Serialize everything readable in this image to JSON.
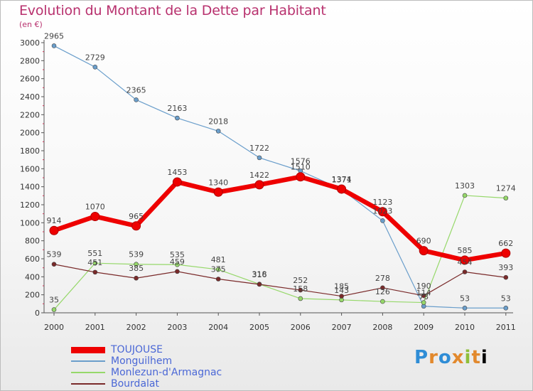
{
  "title": "Evolution du Montant de la Dette par Habitant",
  "unit_label": "(en €)",
  "logo_text": "Proxiti",
  "colors": {
    "title": "#b8316e",
    "axis": "#555555",
    "tick_text": "#333333",
    "value_text": "#444444"
  },
  "chart_data": {
    "type": "line",
    "title": "Evolution du Montant de la Dette par Habitant",
    "ylabel": "(en €)",
    "xlabel": "",
    "x": [
      "2000",
      "2001",
      "2002",
      "2003",
      "2004",
      "2005",
      "2006",
      "2007",
      "2008",
      "2009",
      "2010",
      "2011"
    ],
    "ylim": [
      0,
      3000
    ],
    "yticks": [
      0,
      200,
      400,
      600,
      800,
      1000,
      1200,
      1400,
      1600,
      1800,
      2000,
      2200,
      2400,
      2600,
      2800,
      3000
    ],
    "grid": false,
    "legend_position": "bottom-left",
    "series": [
      {
        "name": "TOUJOUSE",
        "color": "#ee0000",
        "width": 6.5,
        "values": [
          914,
          1070,
          965,
          1453,
          1340,
          1422,
          1510,
          1374,
          1123,
          690,
          585,
          662
        ]
      },
      {
        "name": "Monguilhem",
        "color": "#6a9ecb",
        "width": 1.2,
        "values": [
          2965,
          2729,
          2365,
          2163,
          2018,
          1722,
          1576,
          1371,
          1023,
          73,
          53,
          53
        ]
      },
      {
        "name": "Monlezun-d'Armagnac",
        "color": "#96d86a",
        "width": 1.2,
        "values": [
          35,
          551,
          539,
          535,
          481,
          318,
          158,
          143,
          126,
          114,
          1303,
          1274
        ]
      },
      {
        "name": "Bourdalat",
        "color": "#7a2a2a",
        "width": 1.2,
        "values": [
          539,
          451,
          385,
          459,
          375,
          316,
          252,
          185,
          278,
          190,
          454,
          393
        ]
      }
    ]
  }
}
